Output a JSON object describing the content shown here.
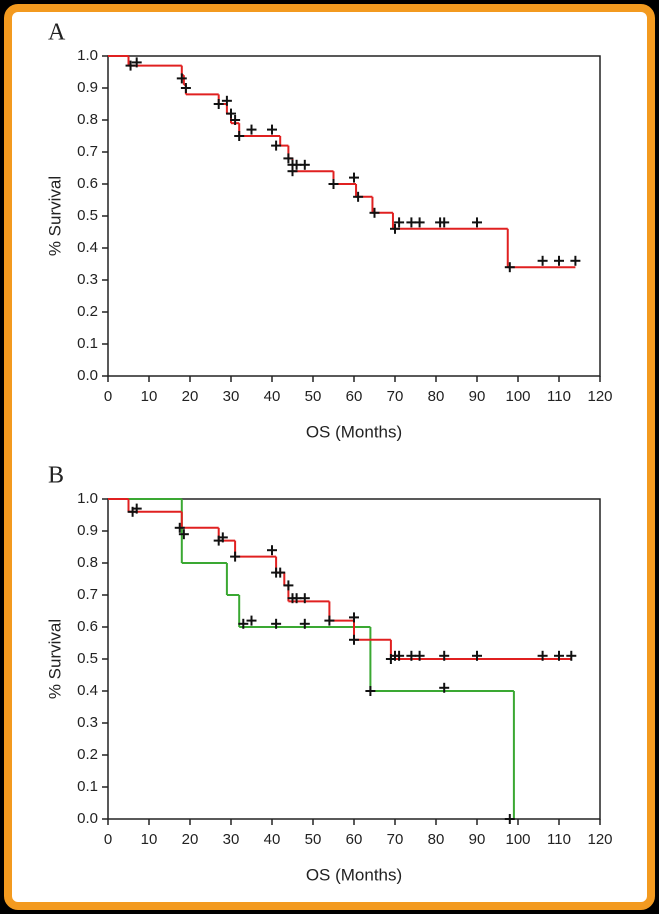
{
  "chart_data": [
    {
      "type": "step",
      "label": "A",
      "xlabel": "OS (Months)",
      "ylabel": "% Survival",
      "xlim": [
        0,
        120
      ],
      "xticks": [
        0,
        10,
        20,
        30,
        40,
        50,
        60,
        70,
        80,
        90,
        100,
        110,
        120
      ],
      "ylim": [
        0,
        1
      ],
      "yticks": [
        {
          "value": 0,
          "label": "0.0"
        },
        0.1,
        0.2,
        0.3,
        0.4,
        0.5,
        0.6,
        0.7,
        0.8,
        0.9,
        {
          "value": 1,
          "label": "1.0"
        }
      ],
      "series": [
        {
          "color": "#e02020",
          "x": [
            0,
            5,
            18,
            18.5,
            19,
            27,
            29,
            30,
            32,
            42,
            44,
            45,
            55,
            60.5,
            64.5,
            69.5,
            97.5,
            114
          ],
          "values": [
            1,
            0.97,
            0.94,
            0.91,
            0.88,
            0.85,
            0.82,
            0.79,
            0.75,
            0.72,
            0.68,
            0.64,
            0.6,
            0.56,
            0.51,
            0.46,
            0.34,
            0.34
          ]
        }
      ],
      "censored": {
        "color": "#111",
        "x": [
          5.5,
          7,
          18,
          19,
          27,
          29,
          30,
          31,
          32,
          35,
          40,
          41,
          44,
          45,
          45,
          46,
          48,
          55,
          60,
          61,
          65,
          70,
          71,
          74,
          76,
          81,
          82,
          90,
          98,
          106,
          110,
          114
        ],
        "values": [
          0.97,
          0.98,
          0.93,
          0.9,
          0.85,
          0.86,
          0.82,
          0.8,
          0.75,
          0.77,
          0.77,
          0.72,
          0.68,
          0.66,
          0.64,
          0.66,
          0.66,
          0.6,
          0.62,
          0.56,
          0.51,
          0.46,
          0.48,
          0.48,
          0.48,
          0.48,
          0.48,
          0.48,
          0.34,
          0.36,
          0.36,
          0.36
        ]
      }
    },
    {
      "type": "step",
      "label": "B",
      "xlabel": "OS (Months)",
      "ylabel": "% Survival",
      "xlim": [
        0,
        120
      ],
      "xticks": [
        0,
        10,
        20,
        30,
        40,
        50,
        60,
        70,
        80,
        90,
        100,
        110,
        120
      ],
      "ylim": [
        0,
        1
      ],
      "yticks": [
        {
          "value": 0,
          "label": "0.0"
        },
        0.1,
        0.2,
        0.3,
        0.4,
        0.5,
        0.6,
        0.7,
        0.8,
        0.9,
        {
          "value": 1,
          "label": "1.0"
        }
      ],
      "series": [
        {
          "color": "#3aa832",
          "x": [
            0,
            18,
            29,
            32,
            64,
            99
          ],
          "values": [
            1,
            0.8,
            0.7,
            0.6,
            0.4,
            0
          ]
        },
        {
          "color": "#e02020",
          "x": [
            0,
            5,
            18,
            27,
            31,
            41,
            43,
            44,
            54,
            60,
            69,
            113
          ],
          "values": [
            1,
            0.96,
            0.91,
            0.87,
            0.82,
            0.77,
            0.73,
            0.68,
            0.62,
            0.56,
            0.5,
            0.5
          ]
        }
      ],
      "censored": {
        "color": "#111",
        "x": [
          6,
          7,
          17.5,
          18.5,
          27,
          28,
          31,
          40,
          41,
          42,
          44,
          45,
          46,
          48,
          54,
          60,
          60,
          69,
          70,
          71,
          74,
          76,
          82,
          90,
          106,
          110,
          113,
          33,
          35,
          41,
          48,
          64,
          82,
          98
        ],
        "values": [
          0.96,
          0.97,
          0.91,
          0.89,
          0.87,
          0.88,
          0.82,
          0.84,
          0.77,
          0.77,
          0.73,
          0.69,
          0.69,
          0.69,
          0.62,
          0.63,
          0.56,
          0.5,
          0.51,
          0.51,
          0.51,
          0.51,
          0.51,
          0.51,
          0.51,
          0.51,
          0.51,
          0.61,
          0.62,
          0.61,
          0.61,
          0.4,
          0.41,
          0
        ]
      }
    }
  ]
}
